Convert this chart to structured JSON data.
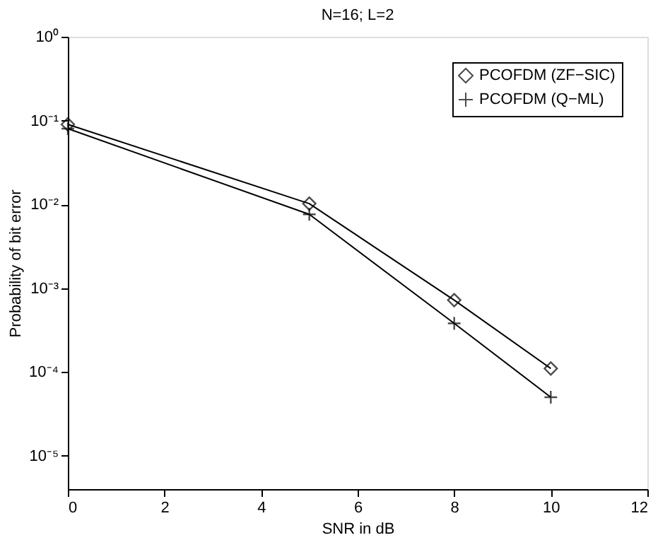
{
  "chart_data": {
    "type": "line",
    "title": "N=16; L=2",
    "xlabel": "SNR in dB",
    "ylabel": "Probability of bit error",
    "log": "y",
    "grid": false,
    "legend": "top right",
    "line_style": "solid",
    "xlim": [
      0,
      12
    ],
    "xticks": [
      0,
      2,
      4,
      6,
      8,
      10,
      12
    ],
    "ylim": [
      4e-06,
      1
    ],
    "yticks": [
      {
        "value": 1e-05,
        "label": "10⁻⁵"
      },
      {
        "value": 0.0001,
        "label": "10⁻⁴"
      },
      {
        "value": 0.001,
        "label": "10⁻³"
      },
      {
        "value": 0.01,
        "label": "10⁻²"
      },
      {
        "value": 0.1,
        "label": "10⁻¹"
      },
      {
        "value": 1,
        "label": "10⁰"
      }
    ],
    "x": [
      0,
      5,
      8,
      10
    ],
    "series": [
      {
        "name": "PCOFDM (ZF−SIC)",
        "color": "#000000",
        "marker": "diamond",
        "values": [
          0.09,
          0.0102,
          0.00072,
          0.00011
        ]
      },
      {
        "name": "PCOFDM (Q−ML)",
        "color": "#000000",
        "marker": "cross",
        "values": [
          0.08,
          0.0076,
          0.00038,
          5e-05
        ]
      }
    ]
  }
}
